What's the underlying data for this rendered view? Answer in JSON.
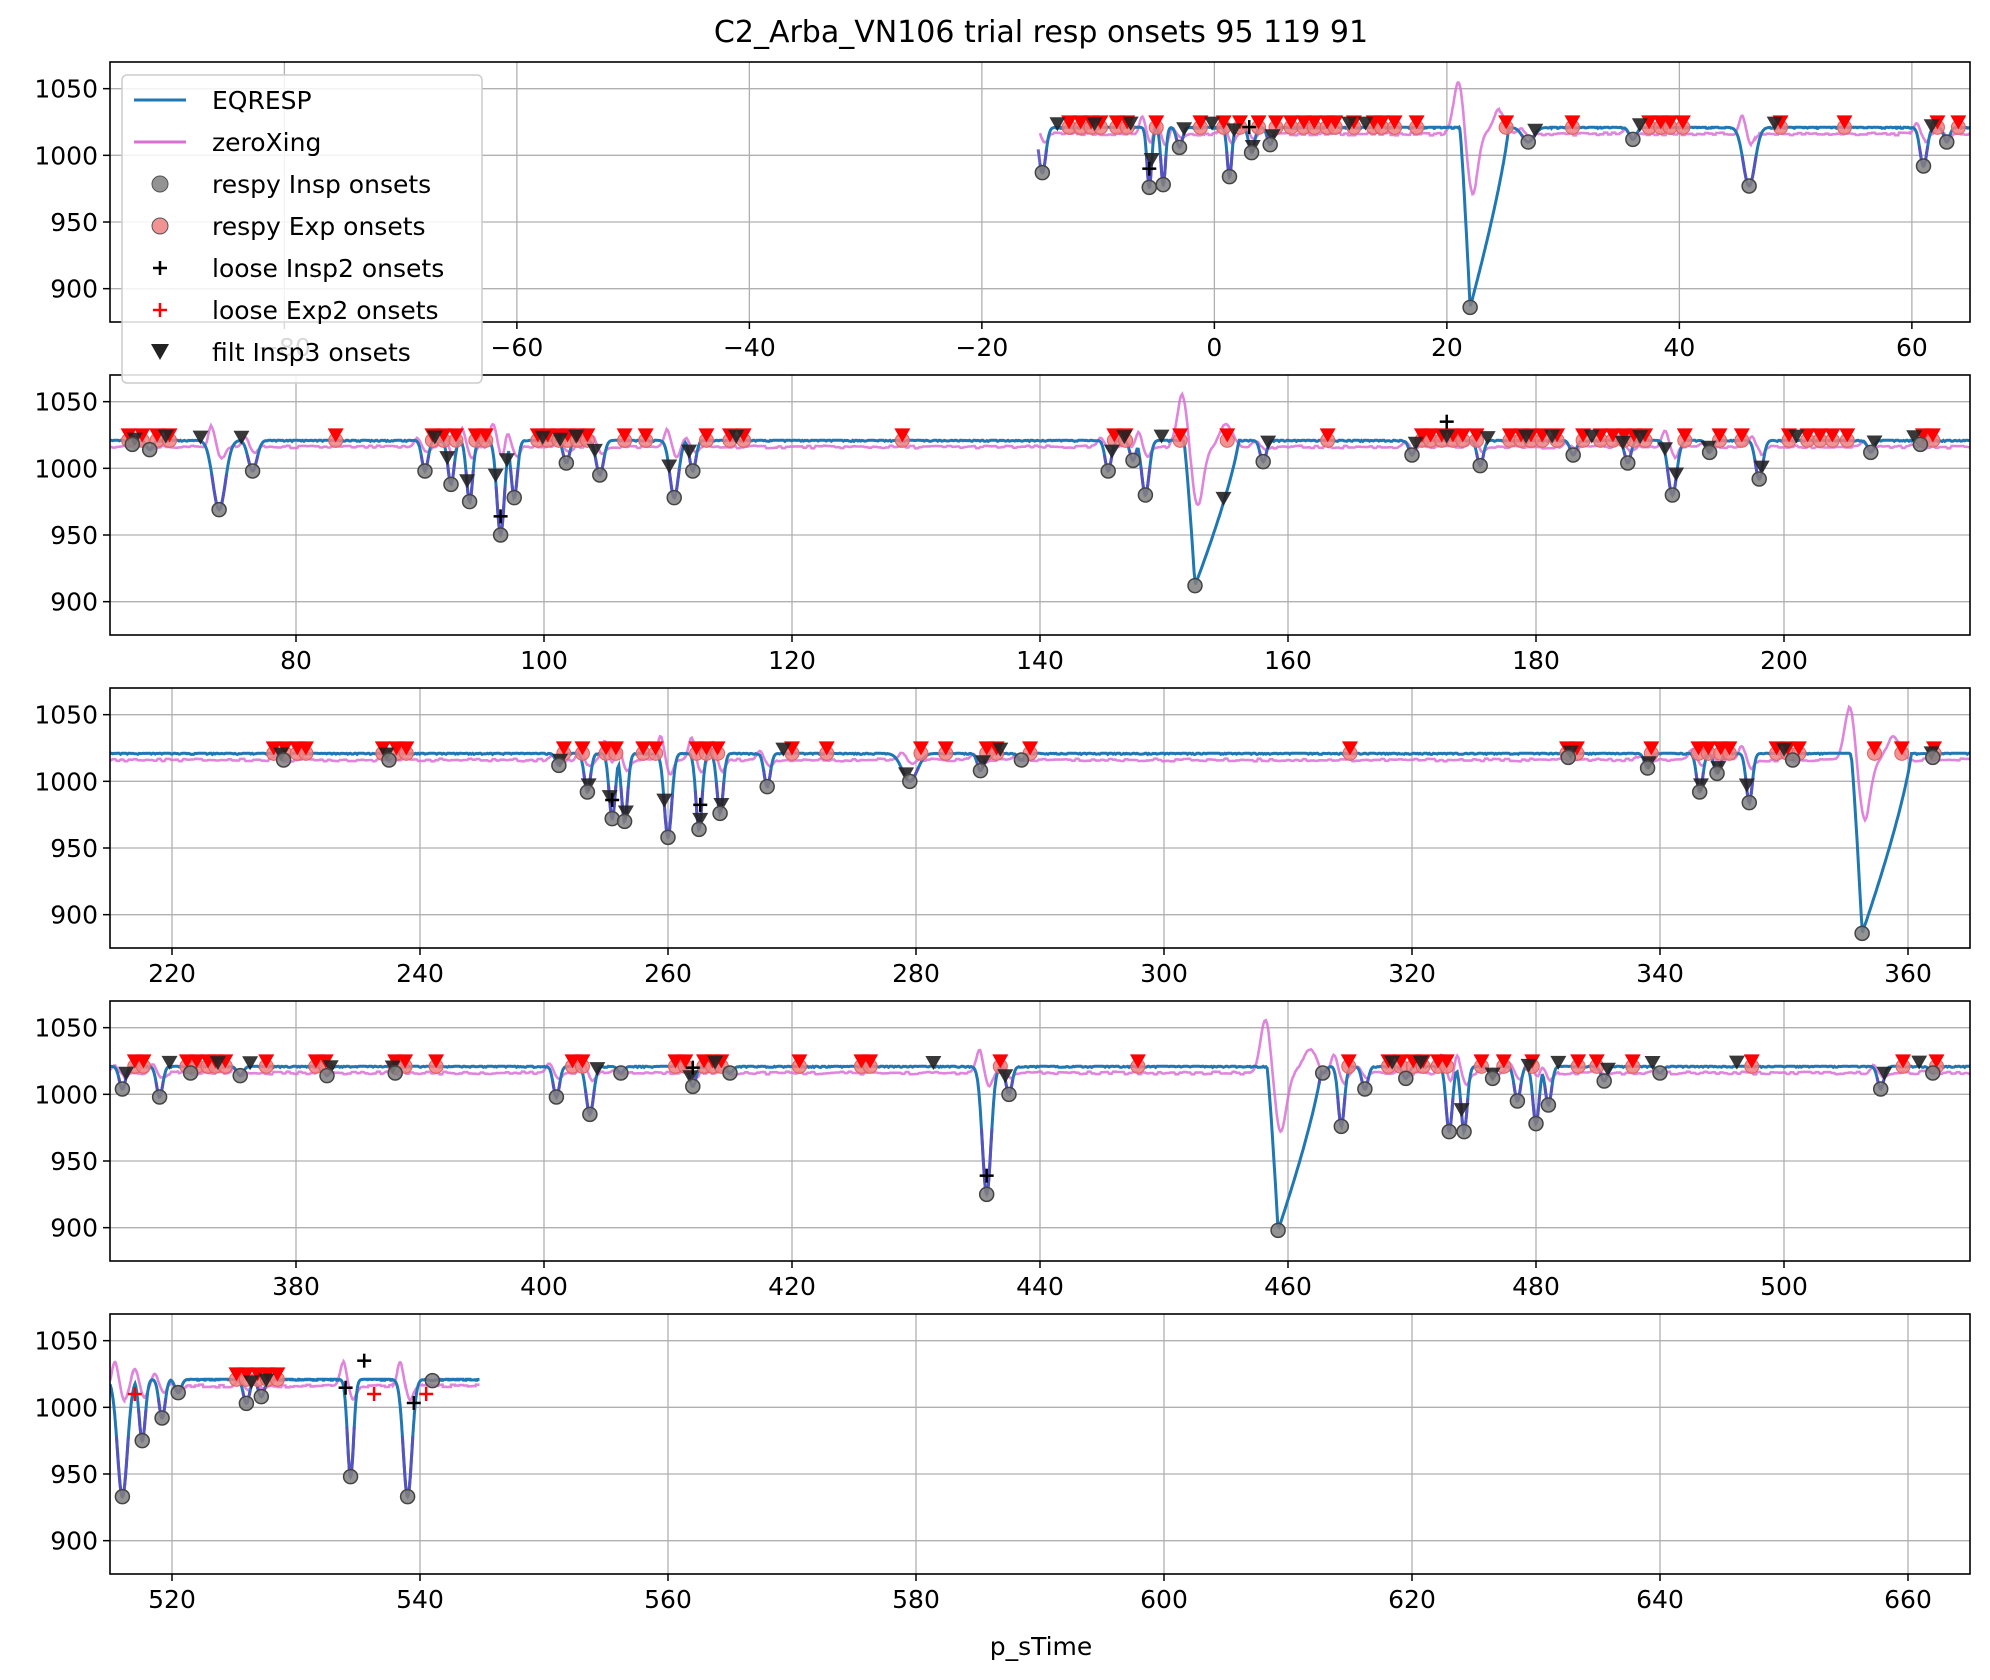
{
  "figure": {
    "title": "C2_Arba_VN106 trial resp onsets 95 119 91",
    "xlabel": "p_sTime"
  },
  "colors": {
    "eqresp": "#1f77b4",
    "zeroxing": "#da70d6",
    "insp_onset": "#808080",
    "exp_onset": "#f08080",
    "loose_insp2": "#000000",
    "loose_exp2": "#ff0000",
    "filt_insp3": "#000000",
    "filt_exp3": "#ff0000",
    "overlap": "#5a4fc0",
    "grid": "#b0b0b0"
  },
  "legend": {
    "placement": "upper-left",
    "entries": [
      {
        "label": "EQRESP",
        "marker": "line",
        "color": "#1f77b4"
      },
      {
        "label": "zeroXing",
        "marker": "line",
        "color": "#da70d6"
      },
      {
        "label": "respy Insp onsets",
        "marker": "circle",
        "color": "#808080"
      },
      {
        "label": "respy Exp onsets",
        "marker": "circle",
        "color": "#f08080"
      },
      {
        "label": "loose Insp2 onsets",
        "marker": "plus",
        "color": "#000000"
      },
      {
        "label": "loose Exp2 onsets",
        "marker": "plus",
        "color": "#ff0000"
      },
      {
        "label": "filt Insp3 onsets",
        "marker": "triangle",
        "color": "#000000"
      }
    ]
  },
  "chart_data": [
    {
      "type": "line",
      "panel": 1,
      "xlim": [
        -95,
        65
      ],
      "ylim": [
        875,
        1070
      ],
      "xticks": [
        -80,
        -60,
        -40,
        -20,
        0,
        20,
        40,
        60
      ],
      "xtick_labels": [
        "−80",
        "−60",
        "−40",
        "−20",
        "0",
        "20",
        "40",
        "60"
      ],
      "yticks": [
        900,
        950,
        1000,
        1050
      ],
      "grid": true,
      "eqresp_baseline": 1021,
      "zeroxing_baseline": 1016,
      "events": [
        {
          "x": -14.8,
          "y": 987,
          "w": 0.6,
          "type": "dip"
        },
        {
          "x": -5.6,
          "y": 976,
          "w": 0.4,
          "type": "dip"
        },
        {
          "x": -4.4,
          "y": 978,
          "w": 0.4,
          "type": "dip"
        },
        {
          "x": -3.0,
          "y": 1006,
          "w": 0.5,
          "type": "dip"
        },
        {
          "x": 1.3,
          "y": 984,
          "w": 0.4,
          "type": "dip"
        },
        {
          "x": 3.2,
          "y": 1002,
          "w": 0.5,
          "type": "dip"
        },
        {
          "x": 4.8,
          "y": 1008,
          "w": 0.5,
          "type": "dip"
        },
        {
          "x": 22.0,
          "y": 886,
          "w": 1.5,
          "type": "big"
        },
        {
          "x": 27.0,
          "y": 1010,
          "w": 1.0,
          "type": "dip"
        },
        {
          "x": 36.0,
          "y": 1012,
          "w": 0.6,
          "type": "dip"
        },
        {
          "x": 46.0,
          "y": 977,
          "w": 1.0,
          "type": "dip"
        },
        {
          "x": 61.0,
          "y": 992,
          "w": 0.6,
          "type": "dip"
        },
        {
          "x": 63.0,
          "y": 1010,
          "w": 0.5,
          "type": "dip"
        }
      ],
      "exp_markers": [
        -12.5,
        -11.5,
        -10.6,
        -9.8,
        -8.4,
        -7.5,
        -5.0,
        -1.2,
        0.8,
        2.2,
        3.8,
        5.3,
        6.6,
        7.7,
        8.6,
        9.7,
        10.4,
        12.0,
        13.7,
        14.4,
        15.5,
        17.4,
        25.1,
        30.8,
        37.4,
        38.4,
        39.2,
        40.3,
        48.7,
        54.2,
        62.2,
        64.0
      ],
      "filt_insp3": [
        -13.5,
        -10.3,
        -7.2,
        -5.4,
        -2.6,
        -0.2,
        1.7,
        3.3,
        5.0,
        11.6,
        13.0,
        27.6,
        36.6,
        48.2,
        61.7
      ],
      "loose_insp2": [
        -5.6,
        3.0
      ]
    },
    {
      "type": "line",
      "panel": 2,
      "xlim": [
        65,
        215
      ],
      "ylim": [
        875,
        1070
      ],
      "xticks": [
        80,
        100,
        120,
        140,
        160,
        180,
        200
      ],
      "xtick_labels": [
        "80",
        "100",
        "120",
        "140",
        "160",
        "180",
        "200"
      ],
      "yticks": [
        900,
        950,
        1000,
        1050
      ],
      "grid": true,
      "eqresp_baseline": 1021,
      "zeroxing_baseline": 1016,
      "events": [
        {
          "x": 66.8,
          "y": 1018,
          "w": 0.5,
          "type": "dip"
        },
        {
          "x": 68.2,
          "y": 1014,
          "w": 0.5,
          "type": "dip"
        },
        {
          "x": 73.8,
          "y": 969,
          "w": 1.0,
          "type": "dip"
        },
        {
          "x": 76.5,
          "y": 998,
          "w": 0.7,
          "type": "dip"
        },
        {
          "x": 90.4,
          "y": 998,
          "w": 0.5,
          "type": "dip"
        },
        {
          "x": 92.5,
          "y": 988,
          "w": 0.5,
          "type": "dip"
        },
        {
          "x": 94.0,
          "y": 975,
          "w": 0.5,
          "type": "dip"
        },
        {
          "x": 96.5,
          "y": 950,
          "w": 0.6,
          "type": "dip"
        },
        {
          "x": 97.6,
          "y": 978,
          "w": 0.5,
          "type": "dip"
        },
        {
          "x": 101.8,
          "y": 1004,
          "w": 0.5,
          "type": "dip"
        },
        {
          "x": 104.5,
          "y": 995,
          "w": 0.6,
          "type": "dip"
        },
        {
          "x": 110.5,
          "y": 978,
          "w": 0.7,
          "type": "dip"
        },
        {
          "x": 112.0,
          "y": 998,
          "w": 0.5,
          "type": "dip"
        },
        {
          "x": 145.5,
          "y": 998,
          "w": 0.5,
          "type": "dip"
        },
        {
          "x": 147.5,
          "y": 1006,
          "w": 0.5,
          "type": "dip"
        },
        {
          "x": 148.5,
          "y": 980,
          "w": 0.6,
          "type": "dip"
        },
        {
          "x": 152.5,
          "y": 912,
          "w": 1.6,
          "type": "big"
        },
        {
          "x": 158.0,
          "y": 1005,
          "w": 0.5,
          "type": "dip"
        },
        {
          "x": 170.0,
          "y": 1010,
          "w": 0.5,
          "type": "dip"
        },
        {
          "x": 175.5,
          "y": 1002,
          "w": 0.5,
          "type": "dip"
        },
        {
          "x": 183.0,
          "y": 1010,
          "w": 0.5,
          "type": "dip"
        },
        {
          "x": 187.4,
          "y": 1004,
          "w": 0.5,
          "type": "dip"
        },
        {
          "x": 191.0,
          "y": 980,
          "w": 0.7,
          "type": "dip"
        },
        {
          "x": 194.0,
          "y": 1012,
          "w": 0.5,
          "type": "dip"
        },
        {
          "x": 198.0,
          "y": 992,
          "w": 0.6,
          "type": "dip"
        },
        {
          "x": 207.0,
          "y": 1012,
          "w": 0.5,
          "type": "dip"
        },
        {
          "x": 211.0,
          "y": 1018,
          "w": 0.5,
          "type": "dip"
        }
      ],
      "exp_markers": [
        66.5,
        67.6,
        68.8,
        69.8,
        83.2,
        91.0,
        91.9,
        92.9,
        94.5,
        95.3,
        99.5,
        100.3,
        101.2,
        101.9,
        102.7,
        103.5,
        106.5,
        108.2,
        113.1,
        115.0,
        116.1,
        128.9,
        146.0,
        146.9,
        151.3,
        155.1,
        163.2,
        170.8,
        171.5,
        172.4,
        173.3,
        174.1,
        175.2,
        177.9,
        178.8,
        179.6,
        180.5,
        181.7,
        183.8,
        185.2,
        186.2,
        187.1,
        187.9,
        188.8,
        192.0,
        194.8,
        196.6,
        200.4,
        201.9,
        202.9,
        203.9,
        205.1,
        211.2,
        212.0
      ],
      "filt_insp3": [
        67.0,
        69.5,
        72.3,
        75.6,
        91.2,
        92.2,
        93.8,
        96.1,
        97.0,
        99.9,
        101.3,
        102.6,
        104.1,
        110.1,
        111.7,
        115.5,
        145.8,
        146.8,
        149.8,
        154.8,
        158.4,
        170.3,
        172.8,
        176.1,
        179.2,
        181.3,
        184.5,
        187.0,
        188.4,
        190.4,
        191.3,
        193.9,
        198.2,
        201.0,
        207.3,
        210.5
      ],
      "loose_insp2": [
        96.5,
        172.8
      ]
    },
    {
      "type": "line",
      "panel": 3,
      "xlim": [
        215,
        365
      ],
      "ylim": [
        875,
        1070
      ],
      "xticks": [
        220,
        240,
        260,
        280,
        300,
        320,
        340,
        360
      ],
      "xtick_labels": [
        "220",
        "240",
        "260",
        "280",
        "300",
        "320",
        "340",
        "360"
      ],
      "yticks": [
        900,
        950,
        1000,
        1050
      ],
      "grid": true,
      "eqresp_baseline": 1021,
      "zeroxing_baseline": 1016,
      "events": [
        {
          "x": 229.0,
          "y": 1016,
          "w": 0.5,
          "type": "dip"
        },
        {
          "x": 237.5,
          "y": 1016,
          "w": 0.5,
          "type": "dip"
        },
        {
          "x": 251.2,
          "y": 1012,
          "w": 0.5,
          "type": "dip"
        },
        {
          "x": 253.5,
          "y": 992,
          "w": 0.5,
          "type": "dip"
        },
        {
          "x": 255.5,
          "y": 972,
          "w": 0.5,
          "type": "dip"
        },
        {
          "x": 256.5,
          "y": 970,
          "w": 0.5,
          "type": "dip"
        },
        {
          "x": 260.0,
          "y": 958,
          "w": 0.6,
          "type": "dip"
        },
        {
          "x": 262.5,
          "y": 964,
          "w": 0.5,
          "type": "dip"
        },
        {
          "x": 264.2,
          "y": 976,
          "w": 0.5,
          "type": "dip"
        },
        {
          "x": 268.0,
          "y": 996,
          "w": 0.5,
          "type": "dip"
        },
        {
          "x": 279.5,
          "y": 1000,
          "w": 1.2,
          "type": "dip"
        },
        {
          "x": 285.2,
          "y": 1008,
          "w": 0.5,
          "type": "dip"
        },
        {
          "x": 288.5,
          "y": 1016,
          "w": 0.5,
          "type": "dip"
        },
        {
          "x": 332.6,
          "y": 1018,
          "w": 0.5,
          "type": "dip"
        },
        {
          "x": 339.0,
          "y": 1010,
          "w": 0.5,
          "type": "dip"
        },
        {
          "x": 343.2,
          "y": 992,
          "w": 0.5,
          "type": "dip"
        },
        {
          "x": 344.6,
          "y": 1006,
          "w": 0.5,
          "type": "dip"
        },
        {
          "x": 347.2,
          "y": 984,
          "w": 0.5,
          "type": "dip"
        },
        {
          "x": 350.7,
          "y": 1016,
          "w": 0.5,
          "type": "dip"
        },
        {
          "x": 356.3,
          "y": 886,
          "w": 1.8,
          "type": "big"
        },
        {
          "x": 362.0,
          "y": 1018,
          "w": 0.5,
          "type": "dip"
        }
      ],
      "exp_markers": [
        228.2,
        229.1,
        230.1,
        230.8,
        237.0,
        238.1,
        238.9,
        251.6,
        253.1,
        255.0,
        255.8,
        258.0,
        259.0,
        262.3,
        263.1,
        264.0,
        270.0,
        272.8,
        280.4,
        282.4,
        285.7,
        286.5,
        289.2,
        315.0,
        332.5,
        333.3,
        339.3,
        343.1,
        343.9,
        344.9,
        345.6,
        349.4,
        350.3,
        351.2,
        357.3,
        359.5,
        362.1
      ],
      "filt_insp3": [
        228.8,
        237.3,
        251.3,
        253.6,
        255.3,
        256.6,
        259.7,
        262.6,
        264.3,
        269.3,
        279.2,
        285.4,
        286.8,
        332.8,
        339.1,
        343.3,
        344.7,
        347.0,
        350.0,
        361.9
      ],
      "loose_insp2": [
        255.5,
        262.6
      ]
    },
    {
      "type": "line",
      "panel": 4,
      "xlim": [
        365,
        515
      ],
      "ylim": [
        875,
        1070
      ],
      "xticks": [
        380,
        400,
        420,
        440,
        460,
        480,
        500
      ],
      "xtick_labels": [
        "380",
        "400",
        "420",
        "440",
        "460",
        "480",
        "500"
      ],
      "yticks": [
        900,
        950,
        1000,
        1050
      ],
      "grid": true,
      "eqresp_baseline": 1021,
      "zeroxing_baseline": 1016,
      "events": [
        {
          "x": 366.0,
          "y": 1004,
          "w": 0.5,
          "type": "dip"
        },
        {
          "x": 369.0,
          "y": 998,
          "w": 0.5,
          "type": "dip"
        },
        {
          "x": 371.5,
          "y": 1016,
          "w": 0.5,
          "type": "dip"
        },
        {
          "x": 375.5,
          "y": 1014,
          "w": 0.5,
          "type": "dip"
        },
        {
          "x": 382.5,
          "y": 1014,
          "w": 0.5,
          "type": "dip"
        },
        {
          "x": 388.0,
          "y": 1016,
          "w": 0.5,
          "type": "dip"
        },
        {
          "x": 401.0,
          "y": 998,
          "w": 0.5,
          "type": "dip"
        },
        {
          "x": 403.7,
          "y": 985,
          "w": 0.6,
          "type": "dip"
        },
        {
          "x": 406.2,
          "y": 1016,
          "w": 0.5,
          "type": "dip"
        },
        {
          "x": 412.0,
          "y": 1006,
          "w": 0.5,
          "type": "dip"
        },
        {
          "x": 415.0,
          "y": 1016,
          "w": 0.5,
          "type": "dip"
        },
        {
          "x": 435.7,
          "y": 925,
          "w": 0.7,
          "type": "dip"
        },
        {
          "x": 437.5,
          "y": 1000,
          "w": 0.5,
          "type": "dip"
        },
        {
          "x": 459.2,
          "y": 898,
          "w": 1.6,
          "type": "big"
        },
        {
          "x": 462.8,
          "y": 1016,
          "w": 0.5,
          "type": "dip"
        },
        {
          "x": 464.3,
          "y": 976,
          "w": 0.5,
          "type": "dip"
        },
        {
          "x": 466.2,
          "y": 1004,
          "w": 0.5,
          "type": "dip"
        },
        {
          "x": 469.5,
          "y": 1012,
          "w": 0.5,
          "type": "dip"
        },
        {
          "x": 473.0,
          "y": 972,
          "w": 0.5,
          "type": "dip"
        },
        {
          "x": 474.2,
          "y": 972,
          "w": 0.5,
          "type": "dip"
        },
        {
          "x": 476.5,
          "y": 1012,
          "w": 0.5,
          "type": "dip"
        },
        {
          "x": 478.5,
          "y": 995,
          "w": 0.5,
          "type": "dip"
        },
        {
          "x": 480.0,
          "y": 978,
          "w": 0.5,
          "type": "dip"
        },
        {
          "x": 481.0,
          "y": 992,
          "w": 0.5,
          "type": "dip"
        },
        {
          "x": 485.5,
          "y": 1010,
          "w": 0.5,
          "type": "dip"
        },
        {
          "x": 490.0,
          "y": 1016,
          "w": 0.5,
          "type": "dip"
        },
        {
          "x": 507.8,
          "y": 1004,
          "w": 0.5,
          "type": "dip"
        },
        {
          "x": 512.0,
          "y": 1016,
          "w": 0.5,
          "type": "dip"
        }
      ],
      "exp_markers": [
        367.0,
        367.7,
        371.2,
        372.0,
        372.9,
        373.5,
        374.3,
        377.6,
        381.6,
        382.4,
        388.0,
        388.8,
        391.3,
        402.3,
        403.1,
        410.6,
        411.4,
        412.9,
        413.6,
        414.3,
        420.6,
        425.6,
        426.3,
        436.8,
        447.9,
        464.9,
        468.1,
        469.1,
        470.1,
        470.9,
        472.1,
        472.8,
        475.6,
        477.4,
        479.7,
        483.4,
        484.9,
        487.8,
        497.4,
        509.6,
        512.3
      ],
      "filt_insp3": [
        366.3,
        369.8,
        373.7,
        376.3,
        382.8,
        387.8,
        404.3,
        411.8,
        413.8,
        431.4,
        437.2,
        468.4,
        470.7,
        474.0,
        476.5,
        479.4,
        481.8,
        485.8,
        489.4,
        496.2,
        508.1,
        510.9
      ],
      "loose_insp2": [
        435.7,
        412.0
      ]
    },
    {
      "type": "line",
      "panel": 5,
      "xlim": [
        515,
        665
      ],
      "ylim": [
        875,
        1070
      ],
      "xticks": [
        520,
        540,
        560,
        580,
        600,
        620,
        640,
        660
      ],
      "xtick_labels": [
        "520",
        "540",
        "560",
        "580",
        "600",
        "620",
        "640",
        "660"
      ],
      "yticks": [
        900,
        950,
        1000,
        1050
      ],
      "grid": true,
      "eqresp_baseline": 1021,
      "zeroxing_baseline": 1016,
      "data_end_x": 544.8,
      "events": [
        {
          "x": 516.0,
          "y": 933,
          "w": 0.8,
          "type": "dip"
        },
        {
          "x": 517.6,
          "y": 975,
          "w": 0.5,
          "type": "dip"
        },
        {
          "x": 519.2,
          "y": 992,
          "w": 0.5,
          "type": "dip"
        },
        {
          "x": 520.5,
          "y": 1011,
          "w": 0.5,
          "type": "dip"
        },
        {
          "x": 526.0,
          "y": 1003,
          "w": 0.5,
          "type": "dip"
        },
        {
          "x": 527.2,
          "y": 1008,
          "w": 0.5,
          "type": "dip"
        },
        {
          "x": 534.4,
          "y": 948,
          "w": 0.5,
          "type": "dip"
        },
        {
          "x": 539.0,
          "y": 933,
          "w": 0.7,
          "type": "dip"
        },
        {
          "x": 541.0,
          "y": 1020,
          "w": 0.5,
          "type": "dip"
        }
      ],
      "exp_markers": [
        525.2,
        526.0,
        526.9,
        527.7,
        528.5
      ],
      "filt_insp3": [
        526.4,
        527.6
      ],
      "loose_insp2": [
        539.5,
        535.5,
        534.0
      ],
      "loose_exp2": [
        517.0,
        536.3,
        540.5
      ]
    }
  ]
}
